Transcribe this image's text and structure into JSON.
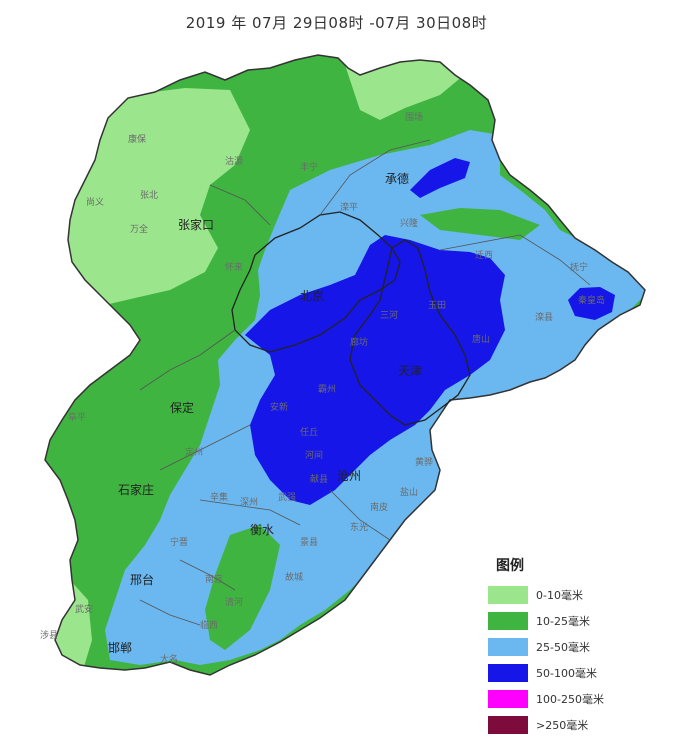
{
  "header": {
    "title": "2019 年 07月 29日08时  -07月 30日08时"
  },
  "map": {
    "colors": {
      "border": "#333333",
      "level_0_10": "#9be58c",
      "level_10_25": "#3fb441",
      "level_25_50": "#6bb7ef",
      "level_50_100": "#1616e8",
      "level_100_250": "#ff00ff",
      "level_250_plus": "#7d0b3b"
    },
    "cities": {
      "zhangjiakou": "张家口",
      "chengde": "承德",
      "beijing": "北京",
      "tianjin": "天津",
      "baoding": "保定",
      "shijiazhuang": "石家庄",
      "hengshui": "衡水",
      "xingtai": "邢台",
      "handan": "邯郸",
      "cangzhou": "沧州"
    },
    "counties": {
      "kangbao": "康保",
      "zhangbei": "张北",
      "shangyi": "尚义",
      "guyuan": "沽源",
      "wanquan": "万全",
      "huailai": "怀来",
      "weichang": "围场",
      "fengning": "丰宁",
      "luanping": "滦平",
      "xinglong": "兴隆",
      "qianxi": "迁西",
      "tangshan": "唐山",
      "qinhuangdao": "秦皇岛",
      "funing": "抚宁",
      "luanxian": "滦县",
      "yutian": "玉田",
      "sanhe": "三河",
      "langfang": "廊坊",
      "bazhou": "霸州",
      "anxin": "安新",
      "renqiu": "任丘",
      "hejian": "河间",
      "xianxian": "献县",
      "dingzhou": "定州",
      "fuping": "阜平",
      "xinji": "辛集",
      "shenzhou": "深州",
      "gucheng": "故城",
      "nangong": "南宫",
      "qinghe": "清河",
      "linxi": "临西",
      "wuan": "武安",
      "shexian": "涉县",
      "daming": "大名",
      "ningjin": "宁晋",
      "huanghua": "黄骅",
      "yanshan": "盐山",
      "nanpi": "南皮",
      "dongguang": "东光",
      "jingxian": "景县",
      "wuqiang": "武强"
    }
  },
  "legend": {
    "title": "图例",
    "items": [
      {
        "label": "0-10毫米",
        "color": "#9be58c"
      },
      {
        "label": "10-25毫米",
        "color": "#3fb441"
      },
      {
        "label": "25-50毫米",
        "color": "#6bb7ef"
      },
      {
        "label": "50-100毫米",
        "color": "#1616e8"
      },
      {
        "label": "100-250毫米",
        "color": "#ff00ff"
      },
      {
        "label": ">250毫米",
        "color": "#7d0b3b"
      }
    ]
  }
}
